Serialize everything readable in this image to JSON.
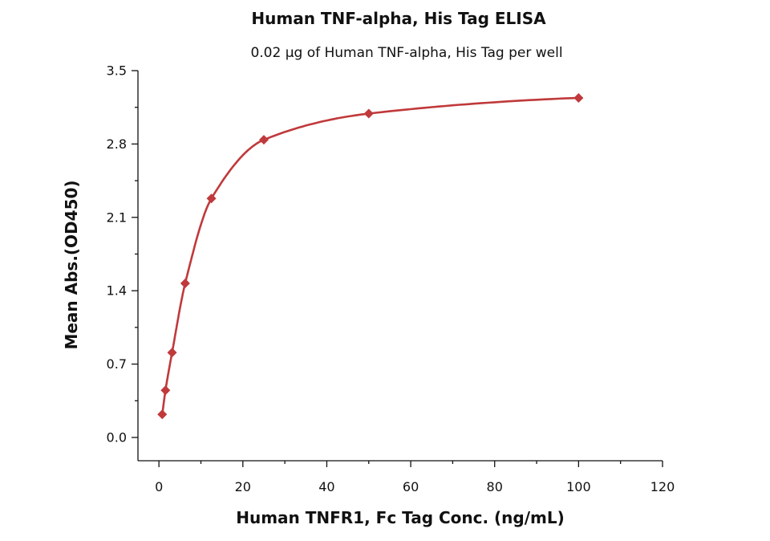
{
  "colors": {
    "series": "#c0393b",
    "axis": "#111111",
    "text": "#111111"
  },
  "chart_data": {
    "type": "scatter",
    "title": "Human TNF-alpha, His Tag ELISA",
    "subtitle": "0.02 µg of Human TNF-alpha, His Tag per well",
    "xlabel": "Human TNFR1, Fc Tag Conc. (ng/mL)",
    "ylabel": "Mean Abs.(OD450)",
    "xlim": [
      -5,
      120
    ],
    "ylim": [
      -0.22,
      3.5
    ],
    "xticks": [
      0,
      20,
      40,
      60,
      80,
      100,
      120
    ],
    "xtick_labels": [
      "0",
      "20",
      "40",
      "60",
      "80",
      "100",
      "120"
    ],
    "yticks": [
      0.0,
      0.7,
      1.4,
      2.1,
      2.8,
      3.5
    ],
    "ytick_labels": [
      "0.0",
      "0.7",
      "1.4",
      "2.1",
      "2.8",
      "3.5"
    ],
    "grid": false,
    "fit_line": true,
    "marker": "diamond",
    "series": [
      {
        "x": [
          0.78,
          1.56,
          3.13,
          6.25,
          12.5,
          25,
          50,
          100
        ],
        "y": [
          0.22,
          0.45,
          0.81,
          1.47,
          2.28,
          2.84,
          3.09,
          3.24
        ]
      }
    ]
  }
}
